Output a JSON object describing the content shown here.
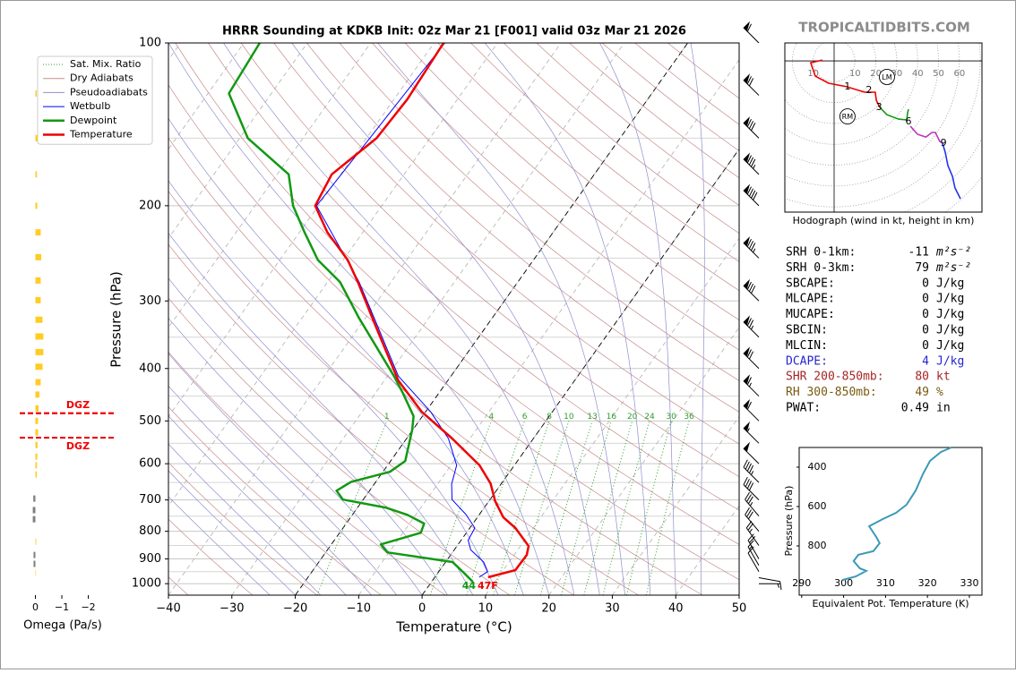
{
  "watermark": "TROPICALTIDBITS.COM",
  "chart_data": [
    {
      "type": "skewt",
      "title": "HRRR Sounding at KDKB Init: 02z Mar 21 [F001] valid 03z Mar 21 2026",
      "xlabel": "Temperature (°C)",
      "ylabel": "Pressure (hPa)",
      "xlim": [
        -40,
        50
      ],
      "xticks": [
        {
          "value": -40,
          "label": "−40"
        },
        {
          "value": -30,
          "label": "−30"
        },
        {
          "value": -20,
          "label": "−20"
        },
        {
          "value": -10,
          "label": "−10"
        },
        0,
        10,
        20,
        30,
        40,
        50
      ],
      "ylim": [
        1050,
        100
      ],
      "log_y": true,
      "yticks": [
        100,
        200,
        300,
        400,
        500,
        600,
        700,
        800,
        900,
        1000
      ],
      "yminor": [
        150,
        250,
        350,
        450,
        550,
        650,
        750,
        850,
        950,
        1050
      ],
      "mixing_ratios": [
        1,
        4,
        6,
        8,
        10,
        13,
        16,
        20,
        24,
        30,
        36
      ],
      "highlight_isotherms": [
        -20,
        0
      ],
      "legend": {
        "position": "upper left",
        "entries": [
          {
            "name": "Sat. Mix. Ratio",
            "color": "#2ca02c",
            "style": "dotted"
          },
          {
            "name": "Dry Adiabats",
            "color": "#c98b8b",
            "style": "solid"
          },
          {
            "name": "Pseudoadiabats",
            "color": "#8f8fcf",
            "style": "solid"
          }
        ]
      },
      "series": [
        {
          "name": "Wetbulb",
          "color": "#0000ff",
          "width": 1,
          "pressure": [
            973,
            950,
            912,
            866,
            831,
            789,
            745,
            699,
            654,
            604,
            539,
            481,
            413,
            329,
            277,
            200,
            100
          ],
          "values": [
            7.0,
            7.7,
            6.0,
            2.6,
            1.1,
            0.8,
            -2.1,
            -6.0,
            -7.8,
            -9.1,
            -13.4,
            -19.2,
            -28.3,
            -37.8,
            -45.0,
            -60.3,
            -58.3
          ]
        },
        {
          "name": "Dewpoint",
          "color": "#119911",
          "width": 2.5,
          "pressure": [
            992,
            955,
            912,
            875,
            846,
            805,
            774,
            746,
            723,
            699,
            673,
            648,
            621,
            593,
            519,
            490,
            445,
            413,
            322,
            277,
            252,
            224,
            200,
            175,
            150,
            124,
            100
          ],
          "values": [
            6.5,
            4.1,
            1.1,
            -10.3,
            -12.2,
            -7.2,
            -7.7,
            -11.3,
            -15.6,
            -23.2,
            -25.2,
            -23.9,
            -18.9,
            -17.7,
            -20.1,
            -21.4,
            -25.6,
            -29.0,
            -41.1,
            -48.0,
            -54.0,
            -59.2,
            -64.0,
            -68.2,
            -78.7,
            -86.7,
            -87.5
          ]
        },
        {
          "name": "Temperature",
          "color": "#ee0000",
          "width": 2.5,
          "pressure": [
            973,
            944,
            885,
            852,
            789,
            754,
            704,
            653,
            604,
            539,
            481,
            421,
            329,
            277,
            252,
            224,
            200,
            175,
            150,
            127,
            100
          ],
          "values": [
            8.4,
            11.9,
            12.0,
            11.3,
            7.2,
            4.1,
            1.0,
            -1.7,
            -5.5,
            -12.8,
            -20.6,
            -27.8,
            -38.1,
            -45.2,
            -49.3,
            -55.6,
            -60.5,
            -61.4,
            -58.4,
            -57.9,
            -58.5
          ]
        }
      ],
      "surface_labels": [
        {
          "text": "44",
          "color": "#119911"
        },
        {
          "text": "47F",
          "color": "#ee0000"
        }
      ],
      "winds": {
        "pressure": [
          1000,
          975,
          950,
          925,
          900,
          850,
          800,
          750,
          700,
          650,
          600,
          550,
          500,
          450,
          400,
          350,
          300,
          250,
          200,
          175,
          150,
          125,
          100
        ],
        "speed": [
          6,
          8,
          10,
          14,
          18,
          25,
          30,
          35,
          40,
          45,
          50,
          55,
          60,
          65,
          70,
          75,
          80,
          85,
          90,
          85,
          80,
          70,
          60
        ],
        "direction": [
          90,
          100,
          330,
          330,
          330,
          325,
          320,
          320,
          315,
          315,
          315,
          315,
          315,
          315,
          315,
          315,
          315,
          315,
          315,
          315,
          315,
          315,
          315
        ]
      }
    },
    {
      "type": "bar",
      "orientation": "horizontal",
      "xlabel": "Omega (Pa/s)",
      "xlim": [
        1,
        -2.1
      ],
      "xticks": [
        0,
        {
          "value": -1,
          "label": "−1"
        },
        {
          "value": -2,
          "label": "−2"
        }
      ],
      "ylim": [
        1050,
        100
      ],
      "log_y": true,
      "colors": {
        "negative": "#ffcc22",
        "positive": "#808080"
      },
      "pressure": [
        124,
        150,
        175,
        200,
        224,
        249,
        275,
        299,
        325,
        349,
        373,
        397,
        424,
        447,
        474,
        500,
        525,
        554,
        582,
        604,
        628,
        696,
        731,
        760,
        836,
        885,
        919,
        955
      ],
      "values": [
        -0.05,
        -0.08,
        -0.06,
        -0.07,
        -0.2,
        -0.22,
        -0.2,
        -0.2,
        -0.27,
        -0.3,
        -0.3,
        -0.27,
        -0.2,
        -0.15,
        -0.12,
        -0.1,
        -0.1,
        -0.08,
        -0.07,
        -0.06,
        -0.05,
        0.08,
        0.1,
        0.1,
        -0.03,
        0.07,
        0.07,
        -0.02
      ],
      "dgz": {
        "pressure": [
          484,
          537
        ],
        "labels": [
          "DGZ",
          "DGZ"
        ],
        "color": "#ee0000"
      }
    },
    {
      "type": "hodograph",
      "caption": "Hodograph (wind in kt, height in km)",
      "xlim": [
        -23.6,
        70.8
      ],
      "ylim": [
        -72.5,
        8.6
      ],
      "xticks": [
        {
          "value": -10,
          "label": "10"
        },
        10,
        20,
        30,
        40,
        50,
        60
      ],
      "rings": [
        10,
        20,
        30,
        40,
        50,
        60,
        70,
        80,
        90
      ],
      "series": [
        {
          "color": "#ee0000",
          "u": [
            -5.6,
            -11.2,
            -9.0,
            -2.6,
            6.0,
            14.6,
            19.7,
            20.2,
            21.9
          ],
          "v": [
            0.4,
            -0.9,
            -7.3,
            -10.7,
            -12.4,
            -15.0,
            -15.0,
            -18.9,
            -22.3
          ]
        },
        {
          "color": "#119911",
          "u": [
            21.9,
            25.3,
            30.9,
            34.8,
            35.2,
            35.6
          ],
          "v": [
            -22.3,
            -25.8,
            -27.9,
            -28.3,
            -24.9,
            -23.2
          ]
        },
        {
          "color": "#bb33bb",
          "u": [
            36.5,
            40.0,
            44.0,
            46.8,
            48.5,
            50.6,
            51.9
          ],
          "v": [
            -31.3,
            -35.2,
            -36.5,
            -34.3,
            -34.3,
            -38.6,
            -39.5
          ]
        },
        {
          "color": "#2233ee",
          "u": [
            51.9,
            53.2,
            54.5,
            56.7,
            57.9,
            60.5
          ],
          "v": [
            -39.5,
            -43.8,
            -50.2,
            -55.4,
            -60.9,
            -66.1
          ]
        }
      ],
      "height_marks": {
        "km": [
          1,
          2,
          3,
          6,
          9
        ],
        "u": [
          6.4,
          16.7,
          21.5,
          35.6,
          52.4
        ],
        "v": [
          -12.4,
          -14.2,
          -22.3,
          -29.2,
          -39.5
        ]
      },
      "storm_motion": [
        {
          "label": "RM",
          "u": 6.4,
          "v": -26.6
        },
        {
          "label": "LM",
          "u": 25.3,
          "v": -7.7
        }
      ]
    },
    {
      "type": "line",
      "xlabel": "Equivalent Pot. Temperature (K)",
      "ylabel": "Pressure (hPa)",
      "xlim": [
        289.4,
        333.0
      ],
      "ylim": [
        1050,
        300
      ],
      "xticks": [
        290,
        300,
        310,
        320,
        330
      ],
      "yticks": [
        400,
        600,
        800
      ],
      "color": "#3a9ab5",
      "pressure": [
        300,
        323,
        368,
        436,
        518,
        591,
        632,
        664,
        700,
        755,
        786,
        827,
        845,
        877,
        914,
        927,
        955,
        973
      ],
      "values": [
        325.7,
        323.2,
        320.6,
        318.9,
        317.2,
        315.0,
        312.5,
        309.3,
        306.1,
        307.8,
        308.6,
        307.1,
        303.5,
        302.4,
        303.9,
        305.4,
        302.9,
        299.7
      ]
    }
  ],
  "stats": {
    "rows": [
      {
        "label": "SRH 0-1km:",
        "value": -11,
        "unit": "m²s⁻²",
        "color": "#000000"
      },
      {
        "label": "SRH 0-3km:",
        "value": 79,
        "unit": "m²s⁻²",
        "color": "#000000"
      },
      {
        "label": "SBCAPE:",
        "value": 0,
        "unit": "J/kg",
        "color": "#000000"
      },
      {
        "label": "MLCAPE:",
        "value": 0,
        "unit": "J/kg",
        "color": "#000000"
      },
      {
        "label": "MUCAPE:",
        "value": 0,
        "unit": "J/kg",
        "color": "#000000"
      },
      {
        "label": "SBCIN:",
        "value": 0,
        "unit": "J/kg",
        "color": "#000000"
      },
      {
        "label": "MLCIN:",
        "value": 0,
        "unit": "J/kg",
        "color": "#000000"
      },
      {
        "label": "DCAPE:",
        "value": 4,
        "unit": "J/kg",
        "color": "#2525d0"
      },
      {
        "label": "SHR 200-850mb:",
        "value": 80,
        "unit": "kt",
        "color": "#a52525"
      },
      {
        "label": "RH 300-850mb:",
        "value": 49,
        "unit": "%",
        "color": "#7a5a10"
      },
      {
        "label": "PWAT:",
        "value": 0.49,
        "unit": "in",
        "color": "#000000"
      }
    ]
  }
}
